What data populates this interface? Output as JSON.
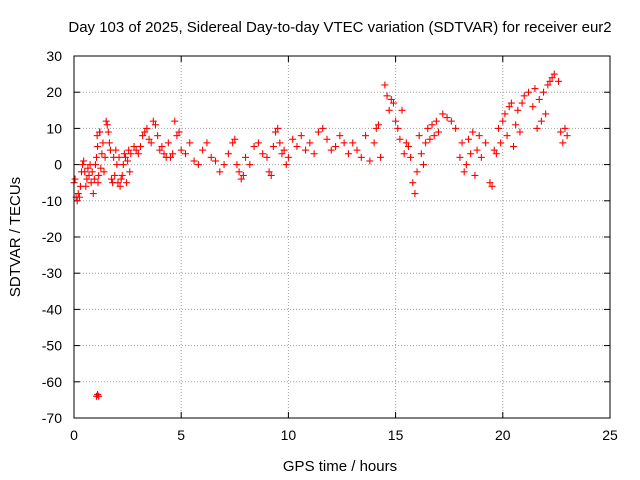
{
  "chart_data": {
    "type": "scatter",
    "title": "Day 103 of 2025, Sidereal Day-to-day VTEC variation (SDTVAR) for receiver eur2",
    "xlabel": "GPS time / hours",
    "ylabel": "SDTVAR / TECUs",
    "xlim": [
      0,
      25
    ],
    "ylim": [
      -70,
      30
    ],
    "xticks": [
      0,
      5,
      10,
      15,
      20,
      25
    ],
    "yticks": [
      -70,
      -60,
      -50,
      -40,
      -30,
      -20,
      -10,
      0,
      10,
      20,
      30
    ],
    "grid": true,
    "marker": "plus",
    "color": "#ff0000",
    "series": [
      {
        "name": "SDTVAR",
        "x": [
          0.0,
          0.05,
          0.1,
          0.15,
          0.2,
          0.25,
          0.3,
          0.35,
          0.4,
          0.45,
          0.5,
          0.55,
          0.6,
          0.65,
          0.7,
          0.75,
          0.8,
          0.85,
          0.9,
          0.95,
          1.0,
          1.05,
          1.1,
          1.15,
          1.2,
          1.25,
          1.3,
          1.35,
          1.4,
          1.45,
          1.5,
          1.55,
          1.6,
          1.65,
          1.7,
          1.75,
          1.8,
          1.85,
          1.9,
          1.95,
          2.0,
          2.05,
          2.1,
          2.15,
          2.2,
          2.25,
          2.3,
          2.35,
          2.4,
          2.45,
          2.5,
          2.55,
          2.6,
          2.65,
          1.05,
          1.1,
          1.15,
          1.2,
          1.08,
          1.12,
          2.8,
          2.9,
          3.0,
          3.1,
          3.2,
          3.3,
          3.4,
          3.5,
          3.6,
          3.7,
          3.8,
          3.9,
          4.0,
          4.1,
          4.2,
          4.3,
          4.4,
          4.5,
          4.6,
          4.7,
          4.8,
          4.9,
          5.0,
          5.2,
          5.4,
          5.6,
          5.8,
          6.0,
          6.2,
          6.4,
          6.6,
          6.8,
          7.0,
          7.2,
          7.4,
          7.5,
          7.6,
          7.7,
          7.8,
          7.9,
          8.0,
          8.2,
          8.4,
          8.6,
          8.8,
          9.0,
          9.1,
          9.2,
          9.3,
          9.4,
          9.5,
          9.6,
          9.7,
          9.8,
          9.9,
          10.0,
          10.2,
          10.4,
          10.6,
          10.8,
          11.0,
          11.2,
          11.4,
          11.6,
          11.8,
          12.0,
          12.2,
          12.4,
          12.6,
          12.8,
          13.0,
          13.2,
          13.4,
          13.6,
          13.8,
          14.0,
          14.1,
          14.2,
          14.3,
          14.5,
          14.6,
          14.7,
          14.8,
          14.9,
          15.0,
          15.1,
          15.2,
          15.3,
          15.4,
          15.5,
          15.6,
          15.7,
          15.8,
          15.9,
          16.0,
          16.1,
          16.2,
          16.3,
          16.4,
          16.5,
          16.6,
          16.7,
          16.8,
          16.9,
          17.0,
          17.2,
          17.4,
          17.6,
          17.8,
          18.0,
          18.1,
          18.2,
          18.3,
          18.4,
          18.5,
          18.6,
          18.7,
          18.8,
          18.9,
          19.0,
          19.2,
          19.4,
          19.5,
          19.6,
          19.7,
          19.8,
          19.9,
          20.0,
          20.1,
          20.2,
          20.3,
          20.4,
          20.5,
          20.6,
          20.7,
          20.8,
          20.9,
          21.0,
          21.2,
          21.4,
          21.5,
          21.6,
          21.7,
          21.8,
          21.9,
          22.0,
          22.1,
          22.2,
          22.3,
          22.4,
          22.6,
          22.7,
          22.8,
          22.9,
          23.0
        ],
        "y": [
          -5,
          -4,
          -9,
          -10,
          -8,
          -9,
          -6,
          -2,
          0,
          1,
          -2,
          -6,
          -4,
          -1,
          -3,
          0,
          -5,
          -2,
          -8,
          -4,
          0,
          2,
          5,
          -3,
          9,
          -1,
          3,
          6,
          -2,
          2,
          12,
          11,
          9,
          6,
          4,
          -4,
          -5,
          2,
          -3,
          4,
          0,
          -5,
          2,
          -6,
          -4,
          -3,
          0,
          3,
          2,
          -5,
          1,
          4,
          -2,
          3,
          -64,
          -63.5,
          -64,
          9,
          8,
          -5,
          5,
          4,
          3,
          5,
          8,
          9,
          10,
          7,
          6,
          12,
          11,
          8,
          4,
          5,
          3,
          2,
          6,
          2,
          3,
          12,
          8,
          9,
          4,
          3,
          6,
          1,
          0,
          4,
          6,
          2,
          1,
          -2,
          0,
          3,
          6,
          7,
          0,
          -2,
          -4,
          -3,
          2,
          0,
          5,
          6,
          3,
          2,
          -2,
          -3,
          5,
          9,
          10,
          6,
          3,
          4,
          0,
          2,
          7,
          5,
          8,
          4,
          6,
          3,
          9,
          10,
          7,
          4,
          5,
          8,
          6,
          3,
          6,
          4,
          2,
          8,
          1,
          6,
          10,
          11,
          2,
          22,
          19,
          15,
          18,
          17,
          12,
          10,
          7,
          15,
          3,
          6,
          5,
          2,
          -5,
          -8,
          -2,
          8,
          3,
          0,
          6,
          10,
          7,
          11,
          8,
          12,
          9,
          14,
          13,
          12,
          10,
          2,
          6,
          -2,
          0,
          7,
          3,
          9,
          -3,
          4,
          8,
          2,
          6,
          -5,
          -6,
          4,
          3,
          10,
          6,
          12,
          14,
          8,
          16,
          17,
          5,
          11,
          15,
          9,
          17,
          19,
          20,
          16,
          21,
          10,
          18,
          12,
          20,
          14,
          22,
          23,
          24,
          25,
          23,
          9,
          6,
          10,
          8
        ]
      }
    ]
  }
}
